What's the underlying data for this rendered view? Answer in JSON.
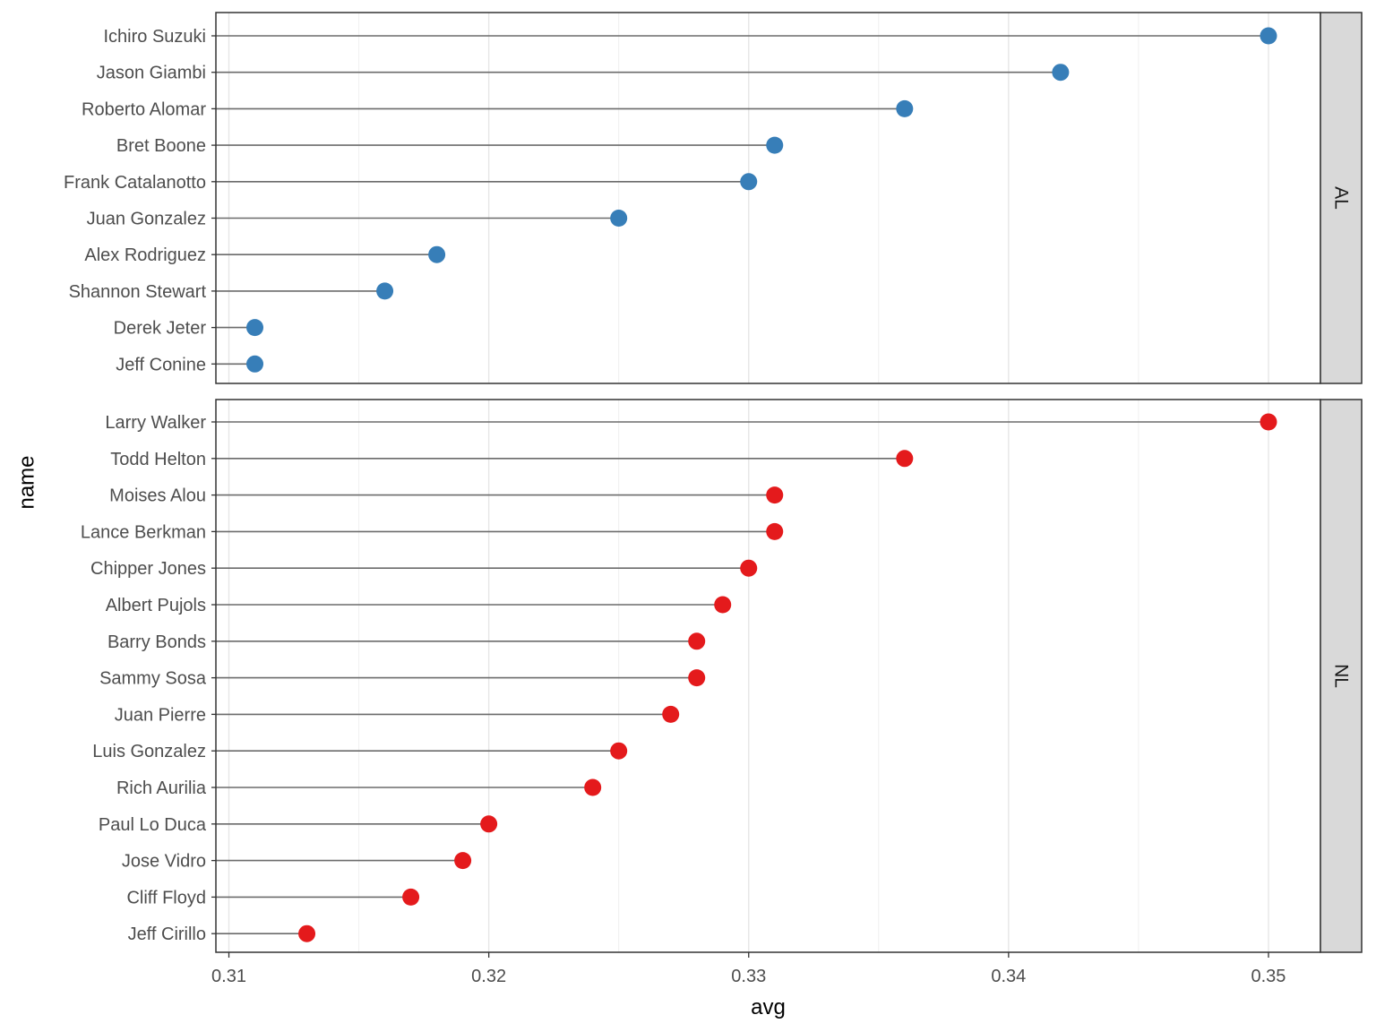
{
  "chart_data": {
    "type": "lollipop",
    "xlabel": "avg",
    "ylabel": "name",
    "xlim": [
      0.3095,
      0.352
    ],
    "x_ticks": [
      0.31,
      0.32,
      0.33,
      0.34,
      0.35
    ],
    "x_tick_labels": [
      "0.31",
      "0.32",
      "0.33",
      "0.34",
      "0.35"
    ],
    "grid": true,
    "facets": [
      {
        "label": "AL",
        "color": "#377EB8",
        "points": [
          {
            "name": "Ichiro Suzuki",
            "avg": 0.35
          },
          {
            "name": "Jason Giambi",
            "avg": 0.342
          },
          {
            "name": "Roberto Alomar",
            "avg": 0.336
          },
          {
            "name": "Bret Boone",
            "avg": 0.331
          },
          {
            "name": "Frank Catalanotto",
            "avg": 0.33
          },
          {
            "name": "Juan Gonzalez",
            "avg": 0.325
          },
          {
            "name": "Alex Rodriguez",
            "avg": 0.318
          },
          {
            "name": "Shannon Stewart",
            "avg": 0.316
          },
          {
            "name": "Derek Jeter",
            "avg": 0.311
          },
          {
            "name": "Jeff Conine",
            "avg": 0.311
          }
        ]
      },
      {
        "label": "NL",
        "color": "#E41A1C",
        "points": [
          {
            "name": "Larry Walker",
            "avg": 0.35
          },
          {
            "name": "Todd Helton",
            "avg": 0.336
          },
          {
            "name": "Moises Alou",
            "avg": 0.331
          },
          {
            "name": "Lance Berkman",
            "avg": 0.331
          },
          {
            "name": "Chipper Jones",
            "avg": 0.33
          },
          {
            "name": "Albert Pujols",
            "avg": 0.329
          },
          {
            "name": "Barry Bonds",
            "avg": 0.328
          },
          {
            "name": "Sammy Sosa",
            "avg": 0.328
          },
          {
            "name": "Juan Pierre",
            "avg": 0.327
          },
          {
            "name": "Luis Gonzalez",
            "avg": 0.325
          },
          {
            "name": "Rich Aurilia",
            "avg": 0.324
          },
          {
            "name": "Paul Lo Duca",
            "avg": 0.32
          },
          {
            "name": "Jose Vidro",
            "avg": 0.319
          },
          {
            "name": "Cliff Floyd",
            "avg": 0.317
          },
          {
            "name": "Jeff Cirillo",
            "avg": 0.313
          }
        ]
      }
    ]
  }
}
